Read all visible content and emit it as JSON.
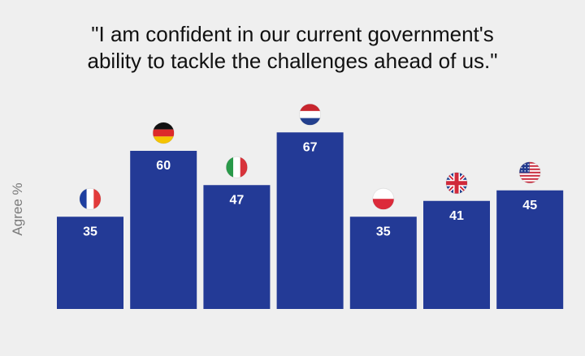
{
  "title_lines": [
    "\"I am confident in our current government's",
    "ability to tackle the challenges ahead of us.\""
  ],
  "colors": {
    "bar": "#233a96",
    "label": "#ffffff",
    "axis": "#7a7a7a",
    "background": "#efefef"
  },
  "chart_data": {
    "type": "bar",
    "title": "\"I am confident in our current government's ability to tackle the challenges ahead of us.\"",
    "ylabel": "Agree %",
    "categories": [
      "France",
      "Germany",
      "Italy",
      "Netherlands",
      "Poland",
      "United Kingdom",
      "United States"
    ],
    "values": [
      35,
      60,
      47,
      67,
      35,
      41,
      45
    ],
    "category_icons": [
      "france-flag-icon",
      "germany-flag-icon",
      "italy-flag-icon",
      "netherlands-flag-icon",
      "poland-flag-icon",
      "uk-flag-icon",
      "usa-flag-icon"
    ],
    "ylim": [
      0,
      100
    ],
    "grid": false,
    "legend": "none"
  }
}
